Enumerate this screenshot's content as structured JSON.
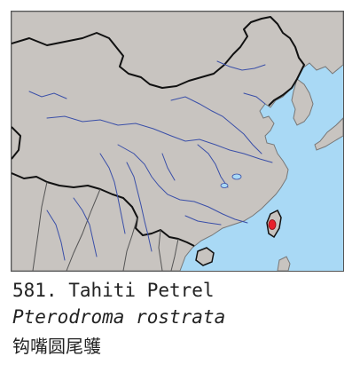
{
  "species": {
    "number_label": "581. Tahiti Petrel",
    "scientific_name": "Pterodroma rostrata",
    "chinese_name": "钩嘴圆尾鹱"
  },
  "map": {
    "colors": {
      "sea": "#a9d9f5",
      "land": "#c8c4c0",
      "border_major": "#111111",
      "border_minor": "#777777",
      "river": "#3a4fa8",
      "record_dot": "#e8202a"
    },
    "record_marker": "taiwan-record-dot"
  }
}
